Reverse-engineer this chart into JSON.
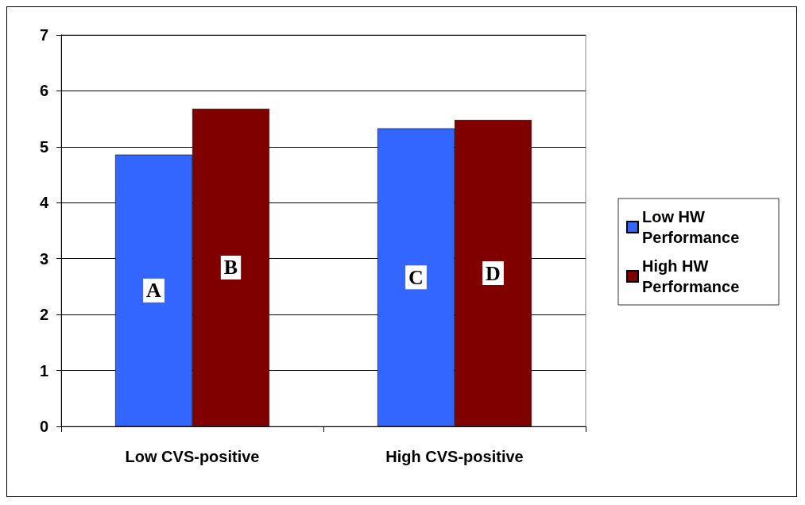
{
  "chart_data": {
    "type": "bar",
    "categories": [
      "Low CVS-positive",
      "High CVS-positive"
    ],
    "series": [
      {
        "name": "Low HW Performance",
        "color": "#3366ff",
        "values": [
          4.86,
          5.33
        ],
        "value_labels": [
          "A",
          "C"
        ]
      },
      {
        "name": "High HW Performance",
        "color": "#800000",
        "values": [
          5.68,
          5.48
        ],
        "value_labels": [
          "B",
          "D"
        ]
      }
    ],
    "ylim": [
      0,
      7
    ],
    "yticks": [
      0,
      1,
      2,
      3,
      4,
      5,
      6,
      7
    ],
    "grid": "y",
    "legend": "right"
  }
}
